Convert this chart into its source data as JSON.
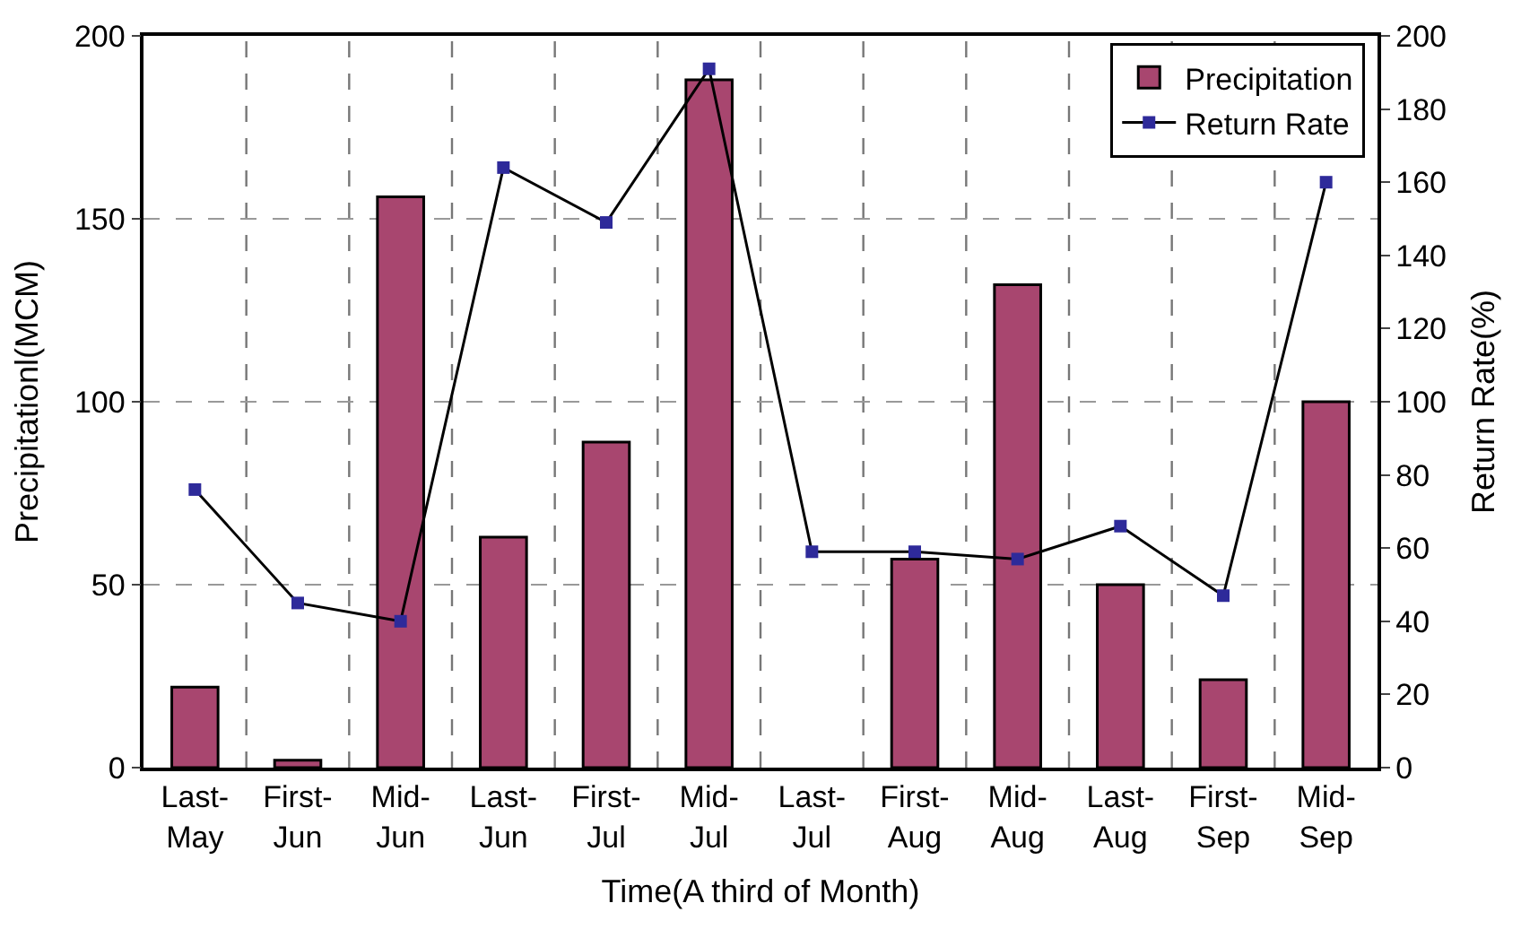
{
  "chart_data": {
    "type": "bar",
    "xlabel": "Time(A third of Month)",
    "ylabel": "Precipitationl(MCM)",
    "y2label": "Return Rate(%)",
    "categories": [
      "Last-\nMay",
      "First-\nJun",
      "Mid-\nJun",
      "Last-\nJun",
      "First-\nJul",
      "Mid-\nJul",
      "Last-\nJul",
      "First-\nAug",
      "Mid-\nAug",
      "Last-\nAug",
      "First-\nSep",
      "Mid-\nSep"
    ],
    "series": [
      {
        "name": "Precipitation",
        "color": "#a8466f",
        "values": [
          22,
          2,
          156,
          63,
          89,
          188,
          null,
          57,
          132,
          50,
          24,
          100
        ]
      },
      {
        "name": "Return Rate",
        "type": "line",
        "axis": "y2",
        "color": "#2e2a9a",
        "marker": "square",
        "values": [
          76,
          45,
          40,
          164,
          149,
          191,
          59,
          59,
          57,
          66,
          47,
          160
        ]
      }
    ],
    "ylim": [
      0,
      200
    ],
    "yticks": [
      0,
      50,
      100,
      150,
      200
    ],
    "y2lim": [
      0,
      200
    ],
    "y2ticks": [
      0,
      20,
      40,
      60,
      80,
      100,
      120,
      140,
      160,
      180,
      200
    ],
    "grid": true,
    "legend": "top right"
  }
}
